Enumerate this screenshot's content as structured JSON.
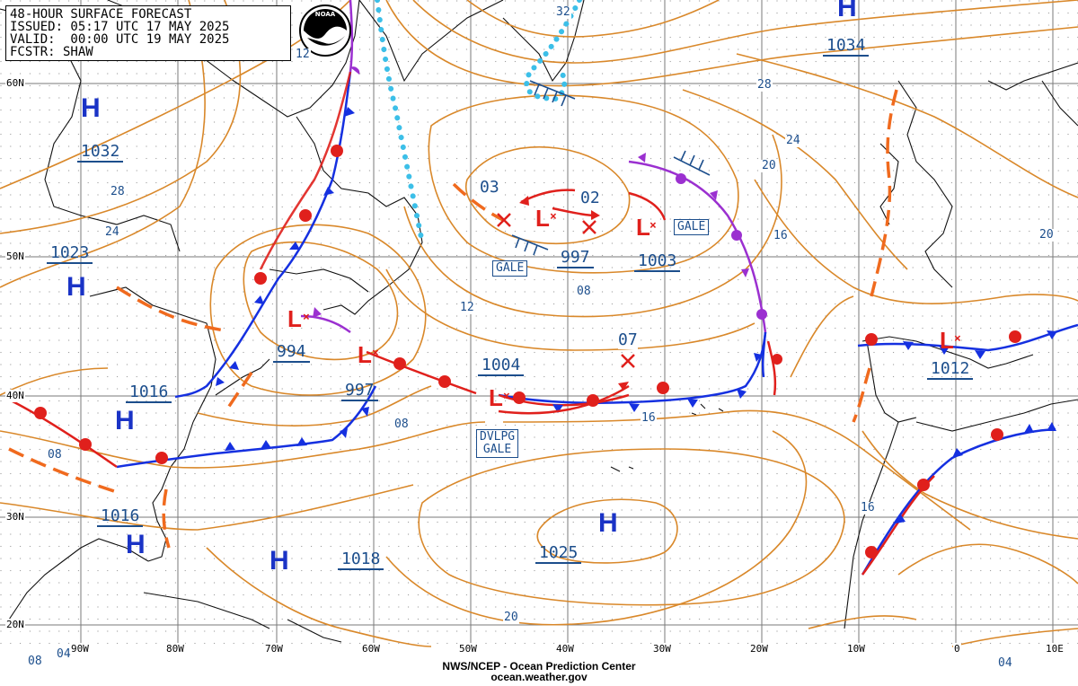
{
  "header": {
    "title": "48-HOUR SURFACE FORECAST",
    "issued": "ISSUED: 05:17 UTC 17 MAY 2025",
    "valid": "VALID:  00:00 UTC 19 MAY 2025",
    "forecaster": "FCSTR: SHAW"
  },
  "logo": {
    "name": "noaa-logo",
    "text": "NOAA"
  },
  "footer": {
    "line1": "NWS/NCEP - Ocean Prediction Center",
    "line2": "ocean.weather.gov"
  },
  "latitude_labels": [
    "60N",
    "50N",
    "40N",
    "30N",
    "20N"
  ],
  "longitude_labels": [
    "90W",
    "80W",
    "70W",
    "60W",
    "50W",
    "40W",
    "30W",
    "20W",
    "10W",
    "0",
    "10E"
  ],
  "high_pressure_systems": [
    {
      "id": "h-labrador",
      "symbol": "H",
      "pressure": "1032"
    },
    {
      "id": "h-greatlakes",
      "symbol": "H",
      "pressure": "1023"
    },
    {
      "id": "h-carolinas",
      "symbol": "H",
      "pressure": "1016"
    },
    {
      "id": "h-florida",
      "symbol": "H",
      "pressure": "1016"
    },
    {
      "id": "h-bermuda",
      "symbol": "H",
      "pressure": "1018"
    },
    {
      "id": "h-azores",
      "symbol": "H",
      "pressure": "1025"
    },
    {
      "id": "h-north",
      "symbol": "H",
      "pressure": "1034"
    }
  ],
  "low_pressure_systems": [
    {
      "id": "l-gulf-stlawrence",
      "symbol": "L",
      "pressure": "994"
    },
    {
      "id": "l-nova-scotia",
      "symbol": "L",
      "pressure": "997"
    },
    {
      "id": "l-south-greenland",
      "symbol": "L",
      "pressure": "997"
    },
    {
      "id": "l-mid-north",
      "symbol": "L",
      "pressure": "1003"
    },
    {
      "id": "l-developing",
      "symbol": "L",
      "pressure": "1004"
    },
    {
      "id": "l-iberia",
      "symbol": "L",
      "pressure": "1012"
    }
  ],
  "forecast_position_labels": [
    "03",
    "02",
    "07"
  ],
  "warnings": [
    {
      "id": "gale-1",
      "text": "GALE"
    },
    {
      "id": "gale-2",
      "text": "GALE"
    },
    {
      "id": "dvlpg-gale",
      "line1": "DVLPG",
      "line2": "GALE"
    }
  ],
  "thickness_labels": [
    "32",
    "28",
    "24",
    "20",
    "16",
    "12",
    "08",
    "04"
  ],
  "isobar_labels": [
    "12",
    "28",
    "24",
    "08",
    "12",
    "08",
    "16",
    "20",
    "16",
    "28",
    "24",
    "20",
    "16",
    "08",
    "04",
    "04"
  ],
  "colors": {
    "high": "#1a33c6",
    "low": "#e02020",
    "pressure_text": "#1c4e8c",
    "isobar": "#d9882a",
    "cold_front": "#1530e0",
    "warm_front": "#e0201c",
    "occluded": "#9b30d0",
    "trough": "#f06a1e",
    "ice_edge": "#3cbfe8",
    "coast": "#000000"
  }
}
